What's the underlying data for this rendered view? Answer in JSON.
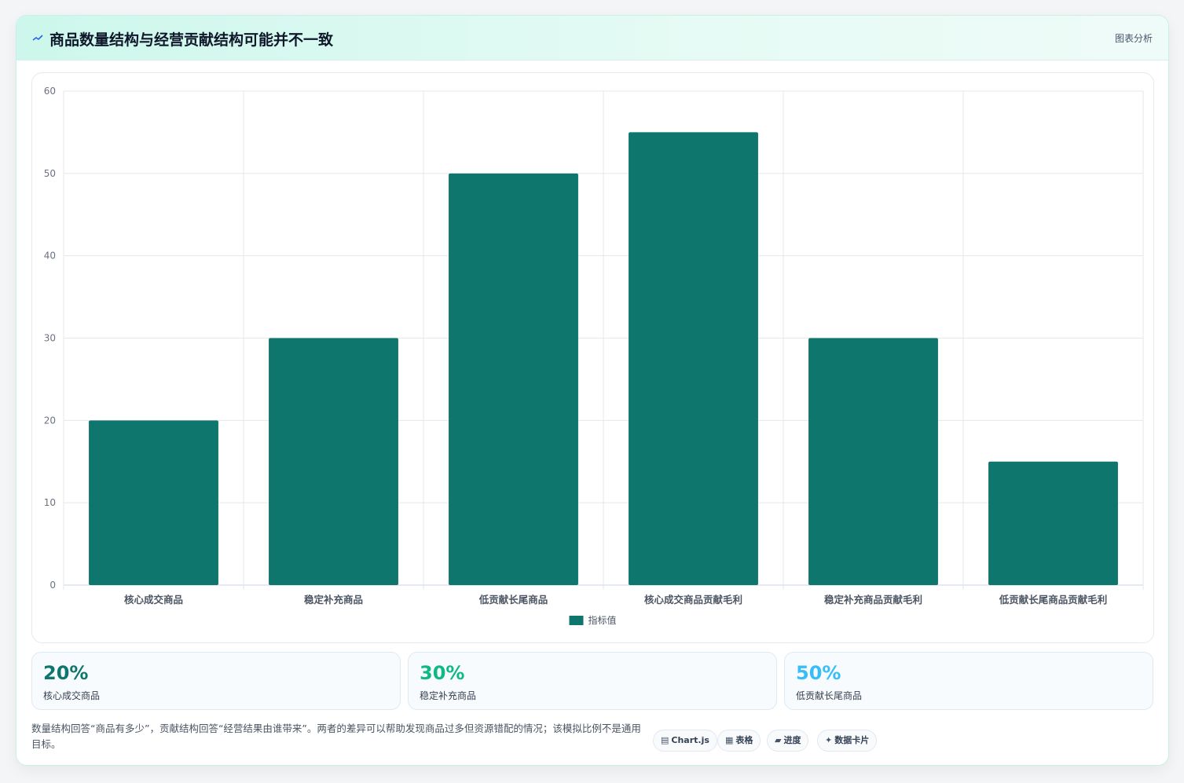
{
  "header": {
    "title": "商品数量结构与经营贡献结构可能并不一致",
    "link_label": "图表分析"
  },
  "chart_data": {
    "type": "bar",
    "categories": [
      "核心成交商品",
      "稳定补充商品",
      "低贡献长尾商品",
      "核心成交商品贡献毛利",
      "稳定补充商品贡献毛利",
      "低贡献长尾商品贡献毛利"
    ],
    "series": [
      {
        "name": "指标值",
        "values": [
          20,
          30,
          50,
          55,
          30,
          15
        ],
        "color": "#0f766e"
      }
    ],
    "ylim": [
      0,
      60
    ],
    "yticks": [
      0,
      10,
      20,
      30,
      40,
      50,
      60
    ],
    "grid": true,
    "legend_position": "bottom"
  },
  "stats": [
    {
      "value": "20%",
      "label": "核心成交商品",
      "color": "#0f766e"
    },
    {
      "value": "30%",
      "label": "稳定补充商品",
      "color": "#10b981"
    },
    {
      "value": "50%",
      "label": "低贡献长尾商品",
      "color": "#38bdf8"
    }
  ],
  "note": "数量结构回答“商品有多少”，贡献结构回答“经营结果由谁带来”。两者的差异可以帮助发现商品过多但资源错配的情况；该模拟比例不是通用目标。",
  "tags": [
    {
      "icon": "▤",
      "label": "Chart.js"
    },
    {
      "icon": "▦",
      "label": "表格"
    },
    {
      "icon": "▰",
      "label": "进度"
    },
    {
      "icon": "✦",
      "label": "数据卡片"
    }
  ]
}
